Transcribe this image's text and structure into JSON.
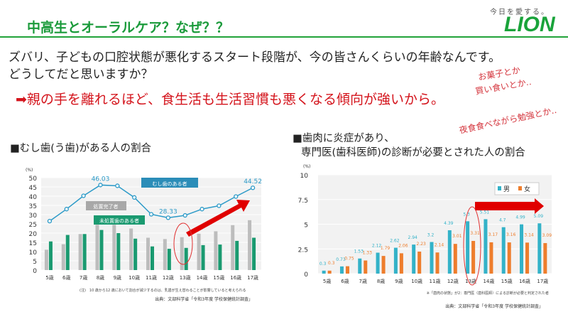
{
  "header": {
    "title": "中高生とオーラルケア？なぜ？？",
    "logo_tagline": "今日を愛する。",
    "logo": "LION"
  },
  "question": {
    "line1": "ズバリ、子どもの口腔状態が悪化するスタート段階が、今の皆さんくらいの年齢なんです。",
    "line2": "どうしてだと思いますか？"
  },
  "answer": "➡親の手を離れるほど、食生活も生活習慣も悪くなる傾向が強いから。",
  "notes": {
    "a": "お菓子とか",
    "b": "買い食いとか‥",
    "c": "夜食食べながら勉強とか‥"
  },
  "colors": {
    "accent": "#1a9a3a",
    "red": "#e00000",
    "line": "#2b9ac8",
    "gray": "#bdbdbd",
    "green": "#1a9a70",
    "male": "#33b2c8",
    "female": "#ee7d2c"
  },
  "chart_data": [
    {
      "type": "bar+line",
      "heading": "■むし歯(う歯)がある人の割合",
      "unit": "(%)",
      "ylim": [
        0,
        50
      ],
      "yticks": [
        0,
        5,
        10,
        15,
        20,
        25,
        30,
        35,
        40,
        45,
        50
      ],
      "categories": [
        "5歳",
        "6歳",
        "7歳",
        "8歳",
        "9歳",
        "10歳",
        "11歳",
        "12歳",
        "13歳",
        "14歳",
        "15歳",
        "16歳",
        "17歳"
      ],
      "series": [
        {
          "name": "むし歯のある者",
          "kind": "line",
          "values": [
            26.5,
            33,
            40.2,
            46.03,
            45.6,
            39.3,
            30.2,
            28.33,
            29.6,
            33,
            34.8,
            39.8,
            44.52
          ],
          "labels": {
            "3": "46.03",
            "7": "28.33",
            "12": "44.52"
          }
        },
        {
          "name": "処置完了者",
          "kind": "bar",
          "values": [
            11,
            14,
            19.5,
            24.5,
            24.5,
            22.5,
            17.5,
            16.8,
            17.8,
            19.7,
            21,
            24.3,
            27
          ]
        },
        {
          "name": "未処置歯のある者",
          "kind": "bar",
          "values": [
            15.5,
            19,
            19.5,
            21.7,
            20,
            17,
            12.8,
            11.5,
            12,
            13.5,
            13.8,
            15.8,
            17.5
          ]
        }
      ],
      "footnote": "(注)　10 歳から12 歳において割合が減少するのは、乳歯が生え替わることが影響していると考えられる",
      "source": "出典：文部科学省「令和3年度 学校保健統計調査」",
      "highlight": "13歳"
    },
    {
      "type": "bar",
      "heading1": "■歯肉に炎症があり、",
      "heading2": "専門医(歯科医師)の診断が必要とされた人の割合",
      "unit": "(%)",
      "ylim": [
        0,
        10
      ],
      "yticks": [
        "0",
        "2.5",
        "5",
        "7.5",
        "10"
      ],
      "categories": [
        "5歳",
        "6歳",
        "7歳",
        "8歳",
        "9歳",
        "10歳",
        "11歳",
        "12歳",
        "13歳",
        "14歳",
        "15歳",
        "16歳",
        "17歳"
      ],
      "series": [
        {
          "name": "男",
          "values": [
            0.3,
            0.73,
            1.53,
            2.12,
            2.62,
            2.94,
            3.2,
            4.39,
            5.3,
            5.51,
            4.7,
            4.99,
            5.09
          ]
        },
        {
          "name": "女",
          "values": [
            0.3,
            0.75,
            1.33,
            1.79,
            2.06,
            2.23,
            2.14,
            3.01,
            3.31,
            3.17,
            3.16,
            3.14,
            3.09
          ]
        }
      ],
      "legend": "top-right",
      "footnote": "※「歯肉の状態」が2：専門医（歯科医師）による診断が必要と判定された者",
      "source": "出典：文部科学省「令和3年度 学校保健統計調査」",
      "highlight": "13歳"
    }
  ]
}
